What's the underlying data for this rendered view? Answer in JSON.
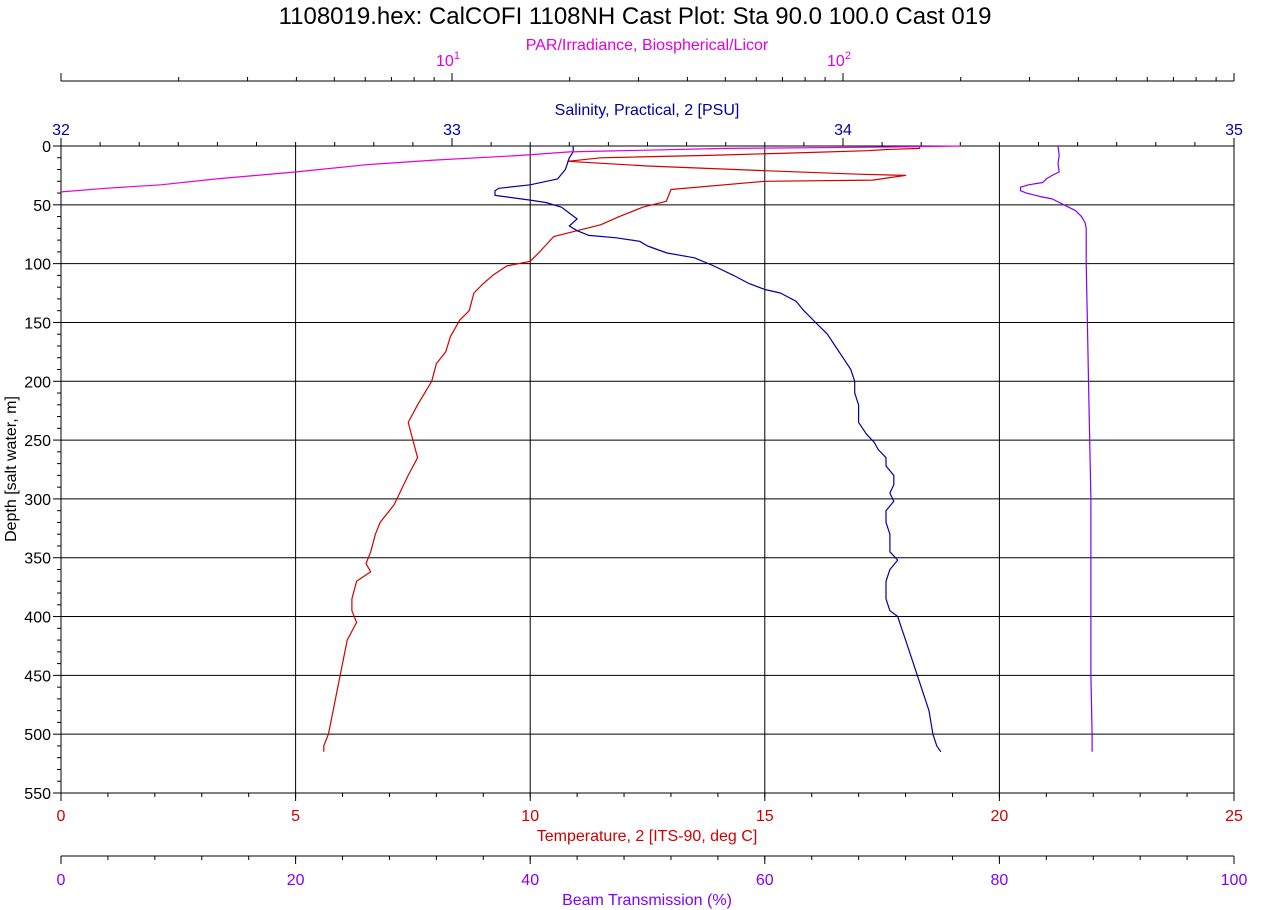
{
  "title": "1108019.hex: CalCOFI 1108NH Cast Plot: Sta 90.0 100.0 Cast 019",
  "chart_data": {
    "type": "line",
    "title": "1108019.hex: CalCOFI 1108NH Cast Plot: Sta 90.0 100.0 Cast 019",
    "depth_axis": {
      "label": "Depth [salt water, m]",
      "ylim": [
        0,
        550
      ],
      "inverted": true,
      "ticks": [
        0,
        50,
        100,
        150,
        200,
        250,
        300,
        350,
        400,
        450,
        500,
        550
      ],
      "tick_labels": [
        "0",
        "50",
        "100",
        "150",
        "200",
        "250",
        "300",
        "350",
        "400",
        "450",
        "500",
        "550"
      ]
    },
    "axes": {
      "par": {
        "label": "PAR/Irradiance, Biospherical/Licor",
        "scale": "log",
        "xlim": [
          1,
          1000
        ],
        "ticks": [
          10,
          100
        ],
        "tick_bases": [
          "10",
          "10"
        ],
        "tick_exponents": [
          "1",
          "2"
        ],
        "color": "#e000e0",
        "position": "top"
      },
      "salinity": {
        "label": "Salinity, Practical, 2 [PSU]",
        "xlim": [
          32,
          35
        ],
        "ticks": [
          32,
          33,
          34,
          35
        ],
        "tick_labels": [
          "32",
          "33",
          "34",
          "35"
        ],
        "color": "#0000a0",
        "position": "top"
      },
      "temperature": {
        "label": "Temperature, 2 [ITS-90, deg C]",
        "xlim": [
          0,
          25
        ],
        "ticks": [
          0,
          5,
          10,
          15,
          20,
          25
        ],
        "tick_labels": [
          "0",
          "5",
          "10",
          "15",
          "20",
          "25"
        ],
        "color": "#d00000",
        "position": "bottom"
      },
      "transmission": {
        "label": "Beam Transmission (%)",
        "xlim": [
          0,
          100
        ],
        "ticks": [
          0,
          20,
          40,
          60,
          80,
          100
        ],
        "tick_labels": [
          "0",
          "20",
          "40",
          "60",
          "80",
          "100"
        ],
        "color": "#8000ff",
        "position": "bottom"
      }
    },
    "grid": true,
    "series": [
      {
        "axis": "temperature",
        "color": "#d00000",
        "points": [
          [
            18.3,
            0
          ],
          [
            18.3,
            2
          ],
          [
            17.6,
            3
          ],
          [
            17.2,
            4
          ],
          [
            15.5,
            6
          ],
          [
            13.8,
            8
          ],
          [
            11.5,
            10
          ],
          [
            10.8,
            13
          ],
          [
            12.5,
            17
          ],
          [
            15.0,
            21
          ],
          [
            17.0,
            24
          ],
          [
            18.0,
            25
          ],
          [
            17.3,
            29
          ],
          [
            15.0,
            30
          ],
          [
            13.0,
            37
          ],
          [
            12.9,
            47
          ],
          [
            12.4,
            52
          ],
          [
            11.9,
            60
          ],
          [
            11.5,
            67
          ],
          [
            11.0,
            72
          ],
          [
            10.5,
            77
          ],
          [
            10.2,
            90
          ],
          [
            10.0,
            98
          ],
          [
            9.5,
            102
          ],
          [
            9.2,
            110
          ],
          [
            9.0,
            117
          ],
          [
            8.8,
            125
          ],
          [
            8.7,
            140
          ],
          [
            8.5,
            148
          ],
          [
            8.3,
            162
          ],
          [
            8.2,
            175
          ],
          [
            8.0,
            185
          ],
          [
            7.9,
            200
          ],
          [
            7.6,
            220
          ],
          [
            7.4,
            235
          ],
          [
            7.5,
            250
          ],
          [
            7.6,
            265
          ],
          [
            7.4,
            280
          ],
          [
            7.1,
            305
          ],
          [
            6.8,
            320
          ],
          [
            6.7,
            330
          ],
          [
            6.6,
            345
          ],
          [
            6.5,
            355
          ],
          [
            6.6,
            362
          ],
          [
            6.3,
            370
          ],
          [
            6.2,
            385
          ],
          [
            6.2,
            395
          ],
          [
            6.3,
            405
          ],
          [
            6.1,
            420
          ],
          [
            6.0,
            440
          ],
          [
            5.9,
            460
          ],
          [
            5.8,
            480
          ],
          [
            5.7,
            500
          ],
          [
            5.6,
            510
          ],
          [
            5.6,
            515
          ]
        ]
      },
      {
        "axis": "salinity",
        "color": "#0000a0",
        "points": [
          [
            33.31,
            0
          ],
          [
            33.31,
            5
          ],
          [
            33.3,
            10
          ],
          [
            33.29,
            20
          ],
          [
            33.27,
            28
          ],
          [
            33.2,
            33
          ],
          [
            33.12,
            36
          ],
          [
            33.11,
            38
          ],
          [
            33.11,
            42
          ],
          [
            33.2,
            46
          ],
          [
            33.24,
            48
          ],
          [
            33.28,
            52
          ],
          [
            33.3,
            57
          ],
          [
            33.32,
            62
          ],
          [
            33.3,
            68
          ],
          [
            33.32,
            72
          ],
          [
            33.35,
            76
          ],
          [
            33.42,
            78
          ],
          [
            33.48,
            81
          ],
          [
            33.5,
            85
          ],
          [
            33.55,
            91
          ],
          [
            33.62,
            95
          ],
          [
            33.67,
            102
          ],
          [
            33.72,
            110
          ],
          [
            33.76,
            117
          ],
          [
            33.8,
            122
          ],
          [
            33.84,
            125
          ],
          [
            33.88,
            132
          ],
          [
            33.9,
            140
          ],
          [
            33.93,
            150
          ],
          [
            33.96,
            160
          ],
          [
            33.98,
            170
          ],
          [
            34.0,
            180
          ],
          [
            34.02,
            190
          ],
          [
            34.03,
            200
          ],
          [
            34.03,
            210
          ],
          [
            34.04,
            220
          ],
          [
            34.04,
            235
          ],
          [
            34.06,
            245
          ],
          [
            34.08,
            252
          ],
          [
            34.09,
            258
          ],
          [
            34.11,
            265
          ],
          [
            34.11,
            272
          ],
          [
            34.13,
            280
          ],
          [
            34.13,
            288
          ],
          [
            34.12,
            295
          ],
          [
            34.13,
            302
          ],
          [
            34.11,
            310
          ],
          [
            34.11,
            320
          ],
          [
            34.12,
            330
          ],
          [
            34.12,
            340
          ],
          [
            34.12,
            345
          ],
          [
            34.14,
            352
          ],
          [
            34.12,
            360
          ],
          [
            34.11,
            370
          ],
          [
            34.11,
            385
          ],
          [
            34.12,
            395
          ],
          [
            34.14,
            400
          ],
          [
            34.15,
            410
          ],
          [
            34.16,
            420
          ],
          [
            34.18,
            440
          ],
          [
            34.2,
            460
          ],
          [
            34.22,
            480
          ],
          [
            34.23,
            500
          ],
          [
            34.24,
            510
          ],
          [
            34.25,
            515
          ]
        ]
      },
      {
        "axis": "transmission",
        "color": "#8000ff",
        "points": [
          [
            85.0,
            0
          ],
          [
            85.1,
            8
          ],
          [
            85.0,
            15
          ],
          [
            85.1,
            22
          ],
          [
            84.5,
            25
          ],
          [
            84.0,
            28
          ],
          [
            83.7,
            31
          ],
          [
            82.5,
            33
          ],
          [
            81.8,
            35
          ],
          [
            81.8,
            38
          ],
          [
            82.3,
            40
          ],
          [
            83.5,
            43
          ],
          [
            84.5,
            45
          ],
          [
            85.5,
            50
          ],
          [
            86.5,
            55
          ],
          [
            87.0,
            60
          ],
          [
            87.3,
            65
          ],
          [
            87.4,
            70
          ],
          [
            87.4,
            80
          ],
          [
            87.4,
            90
          ],
          [
            87.4,
            100
          ],
          [
            87.5,
            150
          ],
          [
            87.6,
            200
          ],
          [
            87.7,
            250
          ],
          [
            87.8,
            300
          ],
          [
            87.8,
            350
          ],
          [
            87.8,
            400
          ],
          [
            87.8,
            450
          ],
          [
            87.9,
            500
          ],
          [
            87.9,
            515
          ]
        ]
      },
      {
        "axis": "par",
        "color": "#e000e0",
        "points": [
          [
            200,
            0
          ],
          [
            120,
            1
          ],
          [
            50,
            2
          ],
          [
            20,
            5
          ],
          [
            15,
            8
          ],
          [
            9,
            12
          ],
          [
            6,
            16
          ],
          [
            4,
            22
          ],
          [
            2.5,
            28
          ],
          [
            1.8,
            33
          ],
          [
            1.3,
            36
          ],
          [
            1.0,
            39
          ]
        ]
      }
    ]
  }
}
